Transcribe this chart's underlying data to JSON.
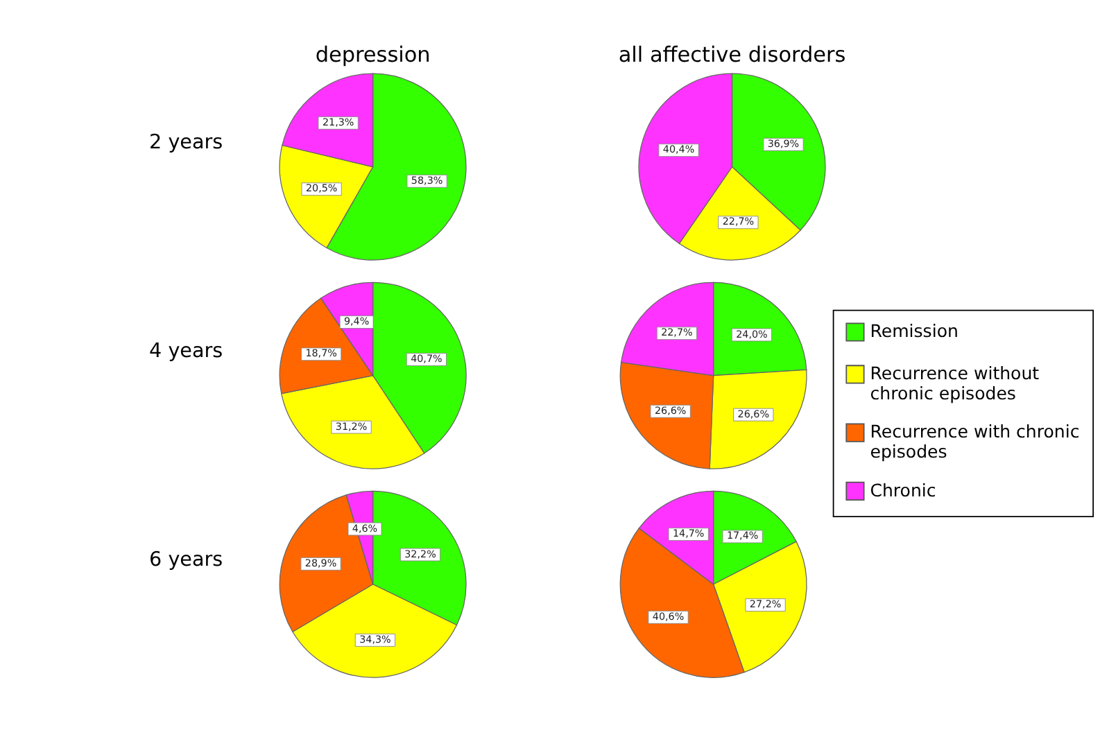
{
  "chart_data": [
    {
      "type": "pie",
      "title": "depression",
      "ylabel": "2 years",
      "categories": [
        "Remission",
        "Recurrence without chronic episodes",
        "Recurrence with chronic episodes",
        "Chronic"
      ],
      "values": [
        58.3,
        20.5,
        0,
        21.3
      ],
      "value_labels": [
        "58,3%",
        "20,5%",
        null,
        "21,3%"
      ],
      "colors": [
        "#33ff00",
        "#ffff00",
        "#ff6600",
        "#ff33ff"
      ],
      "legend": "right"
    },
    {
      "type": "pie",
      "title": "all affective disorders",
      "categories": [
        null,
        null,
        null
      ],
      "values": [
        36.9,
        22.7,
        40.4
      ],
      "value_labels": [
        "36,9%",
        "22,7%",
        "40,4%"
      ],
      "colors": [
        "#33ff00",
        "#ffff00",
        "#ff33ff"
      ]
    },
    {
      "type": "pie",
      "ylabel": "4 years",
      "categories": [
        null,
        null,
        null,
        null
      ],
      "values": [
        40.7,
        31.2,
        18.7,
        9.4
      ],
      "value_labels": [
        "40,7%",
        "31,2%",
        "18,7%",
        "9,4%"
      ],
      "colors": [
        "#33ff00",
        "#ffff00",
        "#ff6600",
        "#ff33ff"
      ]
    },
    {
      "type": "pie",
      "categories": [
        null,
        null,
        null,
        null
      ],
      "values": [
        24.0,
        26.6,
        26.6,
        22.7
      ],
      "value_labels": [
        "24,0%",
        "26,6%",
        "26,6%",
        "22,7%"
      ],
      "colors": [
        "#33ff00",
        "#ffff00",
        "#ff6600",
        "#ff33ff"
      ]
    },
    {
      "type": "pie",
      "ylabel": "6 years",
      "categories": [
        null,
        null,
        null,
        null
      ],
      "values": [
        32.2,
        34.3,
        28.9,
        4.6
      ],
      "value_labels": [
        "32,2%",
        "34,3%",
        "28,9%",
        "4,6%"
      ],
      "colors": [
        "#33ff00",
        "#ffff00",
        "#ff6600",
        "#ff33ff"
      ]
    },
    {
      "type": "pie",
      "categories": [
        null,
        null,
        null,
        null
      ],
      "values": [
        17.4,
        27.2,
        40.6,
        14.7
      ],
      "value_labels": [
        "17,4%",
        "27,2%",
        "40,6%",
        "14,7%"
      ],
      "colors": [
        "#33ff00",
        "#ffff00",
        "#ff6600",
        "#ff33ff"
      ]
    }
  ]
}
